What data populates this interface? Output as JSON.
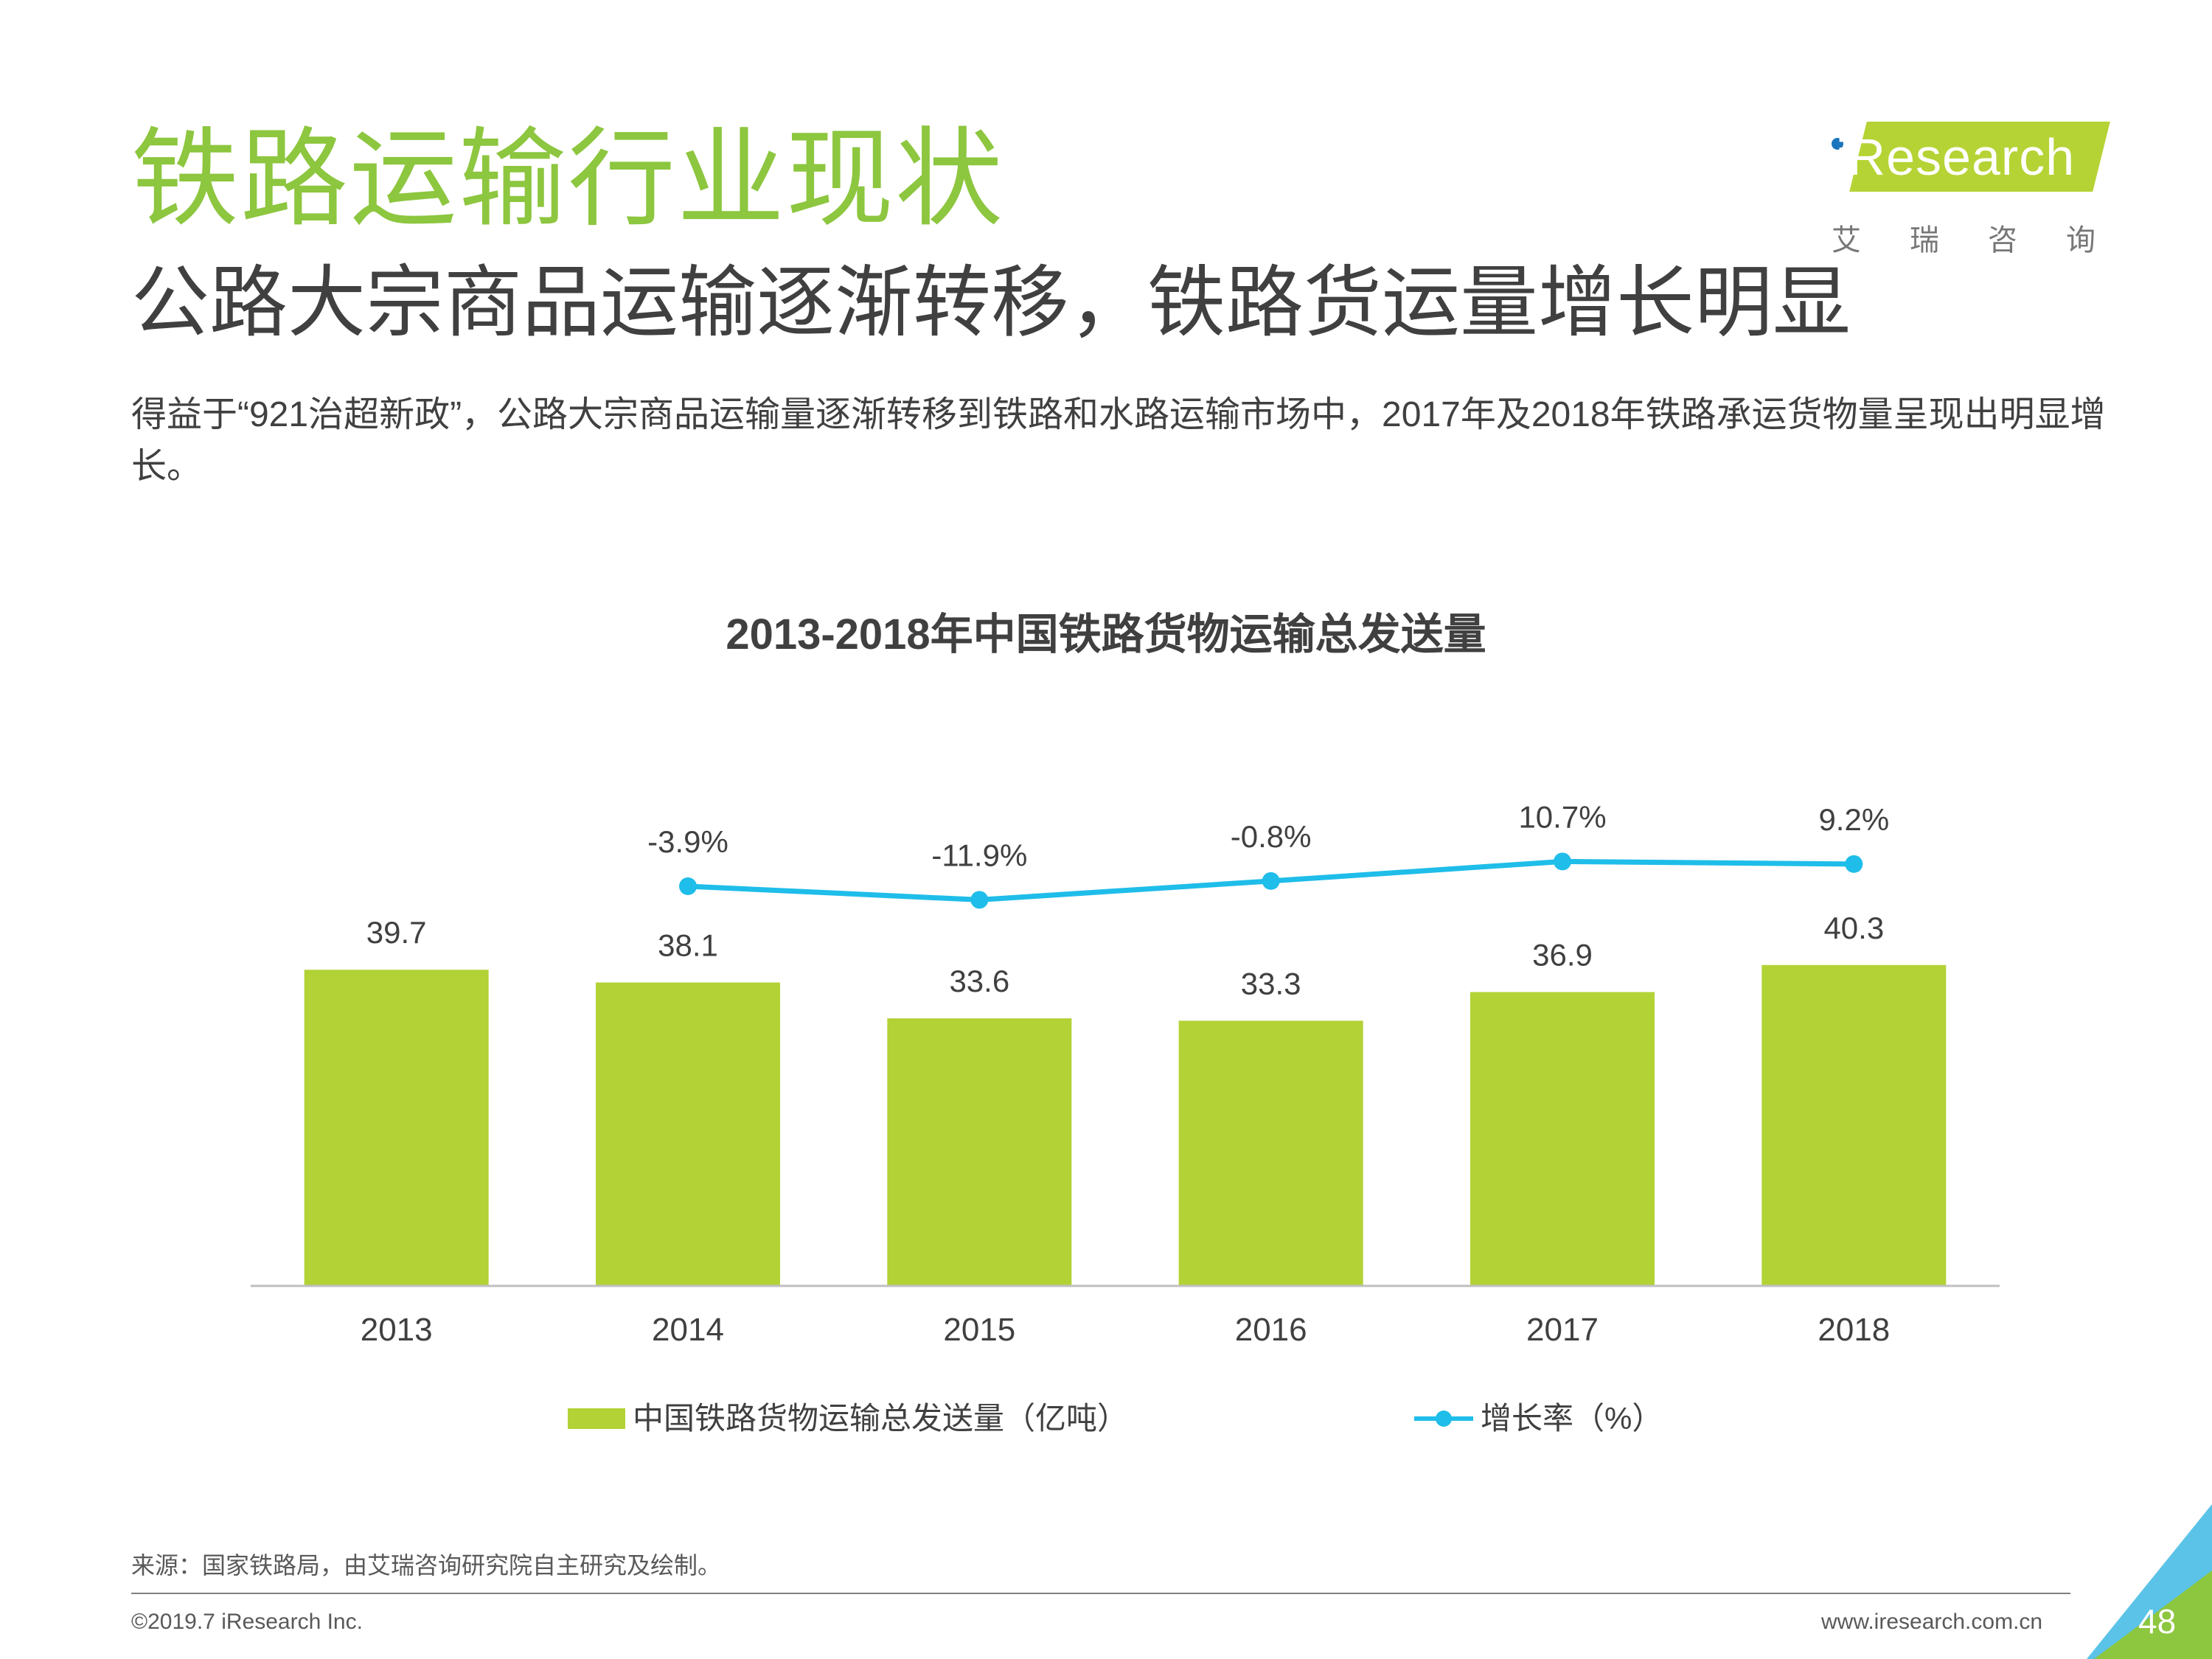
{
  "page": {
    "title": "铁路运输行业现状",
    "subtitle": "公路大宗商品运输逐渐转移，铁路货运量增长明显",
    "description": "得益于“921治超新政”，公路大宗商品运输量逐渐转移到铁路和水路运输市场中，2017年及2018年铁路承运货物量呈现出明显增长。",
    "source": "来源：国家铁路局，由艾瑞咨询研究院自主研究及绘制。",
    "copyright": "©2019.7 iResearch Inc.",
    "website": "www.iresearch.com.cn",
    "page_number": "48"
  },
  "logo": {
    "name": "iResearch",
    "cn": "艾瑞咨询"
  },
  "colors": {
    "accent": "#8dc63f",
    "bar": "#b2d235",
    "line": "#1fbde9"
  },
  "chart_data": {
    "type": "bar",
    "title": "2013-2018年中国铁路货物运输总发送量",
    "categories": [
      "2013",
      "2014",
      "2015",
      "2016",
      "2017",
      "2018"
    ],
    "series": [
      {
        "name": "中国铁路货物运输总发送量（亿吨）",
        "type": "bar",
        "values": [
          39.7,
          38.1,
          33.6,
          33.3,
          36.9,
          40.3
        ],
        "labels": [
          "39.7",
          "38.1",
          "33.6",
          "33.3",
          "36.9",
          "40.3"
        ]
      },
      {
        "name": "增长率（%）",
        "type": "line",
        "values": [
          null,
          -3.9,
          -11.9,
          -0.8,
          10.7,
          9.2
        ],
        "labels": [
          "",
          "-3.9%",
          "-11.9%",
          "-0.8%",
          "10.7%",
          "9.2%"
        ]
      }
    ],
    "legend_position": "bottom",
    "grid": false
  }
}
